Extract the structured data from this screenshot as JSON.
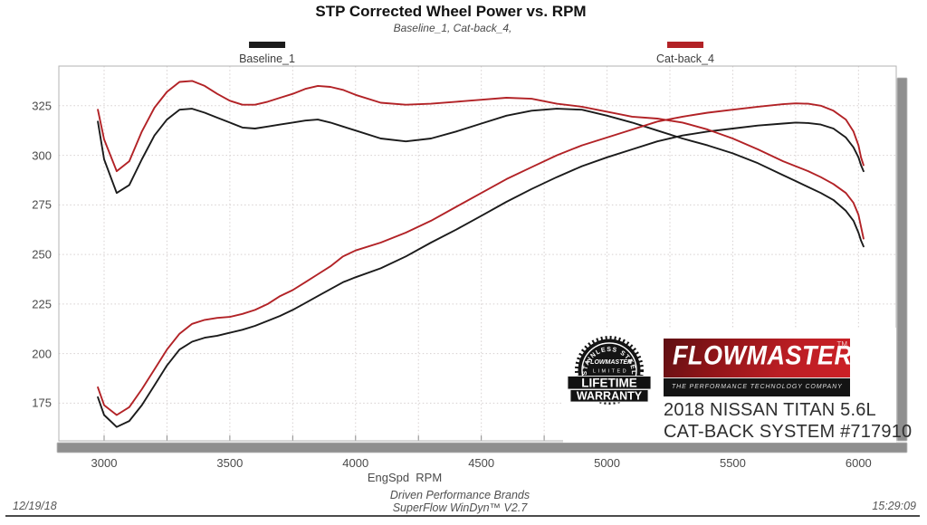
{
  "header": {
    "title": "STP Corrected Wheel Power vs. RPM",
    "subtitle": "Baseline_1, Cat-back_4,"
  },
  "legend": [
    {
      "label": "Baseline_1",
      "color": "#1b1b1b"
    },
    {
      "label": "Cat-back_4",
      "color": "#b22226"
    }
  ],
  "chart_data": {
    "type": "line",
    "title": "STP Corrected Wheel Power vs. RPM",
    "subtitle": "Baseline_1, Cat-back_4,",
    "xlabel": "EngSpd  RPM",
    "ylabel": "",
    "xlim": [
      2820,
      6150
    ],
    "ylim": [
      156,
      345
    ],
    "x_ticks": [
      3000,
      3500,
      4000,
      4500,
      5000,
      5500,
      6000
    ],
    "y_ticks": [
      175,
      200,
      225,
      250,
      275,
      300,
      325
    ],
    "x_grid": {
      "start": 3000,
      "end": 6000,
      "step": 250
    },
    "grid": true,
    "legend_position": "top",
    "x": [
      2975,
      3000,
      3050,
      3100,
      3150,
      3200,
      3250,
      3300,
      3350,
      3400,
      3450,
      3500,
      3550,
      3600,
      3650,
      3700,
      3750,
      3800,
      3850,
      3900,
      3950,
      4000,
      4100,
      4200,
      4300,
      4400,
      4500,
      4600,
      4700,
      4800,
      4900,
      5000,
      5100,
      5200,
      5300,
      5400,
      5500,
      5600,
      5700,
      5750,
      5800,
      5850,
      5900,
      5950,
      5980,
      6000,
      6010,
      6020
    ],
    "series": [
      {
        "name": "Baseline_1 torque",
        "color": "#1b1b1b",
        "values": [
          317,
          298,
          281,
          285,
          298,
          310,
          318,
          323,
          323.5,
          321.5,
          319,
          316.5,
          314,
          313.5,
          314.5,
          315.5,
          316.5,
          317.5,
          318,
          316.5,
          314.5,
          312.5,
          308.5,
          307,
          308.5,
          312,
          316,
          320,
          322.5,
          323.5,
          323,
          320,
          316.5,
          312.5,
          308.5,
          305,
          301,
          296,
          290,
          287,
          284,
          281,
          277.5,
          272,
          267,
          261,
          257,
          254
        ]
      },
      {
        "name": "Baseline_1 power",
        "color": "#1b1b1b",
        "values": [
          178,
          169,
          163,
          166,
          174,
          184,
          194,
          202,
          206,
          208,
          209,
          210.5,
          212,
          214,
          216.5,
          219,
          222,
          225.5,
          229,
          232.5,
          236,
          238.5,
          243,
          249,
          256,
          262.5,
          269.5,
          276.5,
          283,
          289,
          294.5,
          299,
          303,
          307,
          310,
          312,
          313.5,
          315,
          316,
          316.5,
          316.3,
          315.5,
          313.5,
          309,
          304,
          299,
          295,
          292
        ]
      },
      {
        "name": "Cat-back_4 torque",
        "color": "#b22226",
        "values": [
          323,
          308,
          292,
          297,
          312,
          324,
          332,
          337,
          337.5,
          335,
          331,
          327.5,
          325.5,
          325.5,
          327,
          329,
          331,
          333.5,
          335,
          334.5,
          333,
          330.5,
          326.5,
          325.5,
          326,
          327,
          328,
          329,
          328.5,
          326,
          324.5,
          322,
          319.5,
          318.5,
          316.5,
          313,
          308.5,
          303,
          297,
          294.5,
          292,
          289,
          285.5,
          281,
          276,
          270,
          264,
          258
        ]
      },
      {
        "name": "Cat-back_4 power",
        "color": "#b22226",
        "values": [
          183,
          174,
          169,
          173,
          182,
          192,
          202,
          210,
          215,
          217,
          218,
          218.5,
          220,
          222,
          225,
          229,
          232,
          236,
          240,
          244,
          249,
          252,
          256,
          261,
          267,
          274,
          281,
          288,
          294,
          300,
          305,
          309,
          313,
          317,
          319.5,
          321.5,
          323,
          324.5,
          325.8,
          326.2,
          326,
          325,
          322.5,
          318,
          312,
          305,
          299,
          295
        ]
      }
    ]
  },
  "logo": {
    "badge": {
      "arc_text": "STAINLESS STEEL",
      "brand": "FLOWMASTER",
      "limited": "LIMITED",
      "line1": "LIFETIME",
      "line2": "WARRANTY"
    },
    "box": {
      "brand": "FLOWMASTER",
      "trademark": "TM",
      "tagline": "THE PERFORMANCE TECHNOLOGY COMPANY"
    },
    "caption_line1": "2018 NISSAN TITAN 5.6L",
    "caption_line2": "CAT-BACK SYSTEM #717910"
  },
  "footer": {
    "xaxis_title": "EngSpd  RPM",
    "date": "12/19/18",
    "time": "15:29:09",
    "brands_line": "Driven Performance Brands",
    "software_line": "SuperFlow WinDyn™ V2.7"
  }
}
